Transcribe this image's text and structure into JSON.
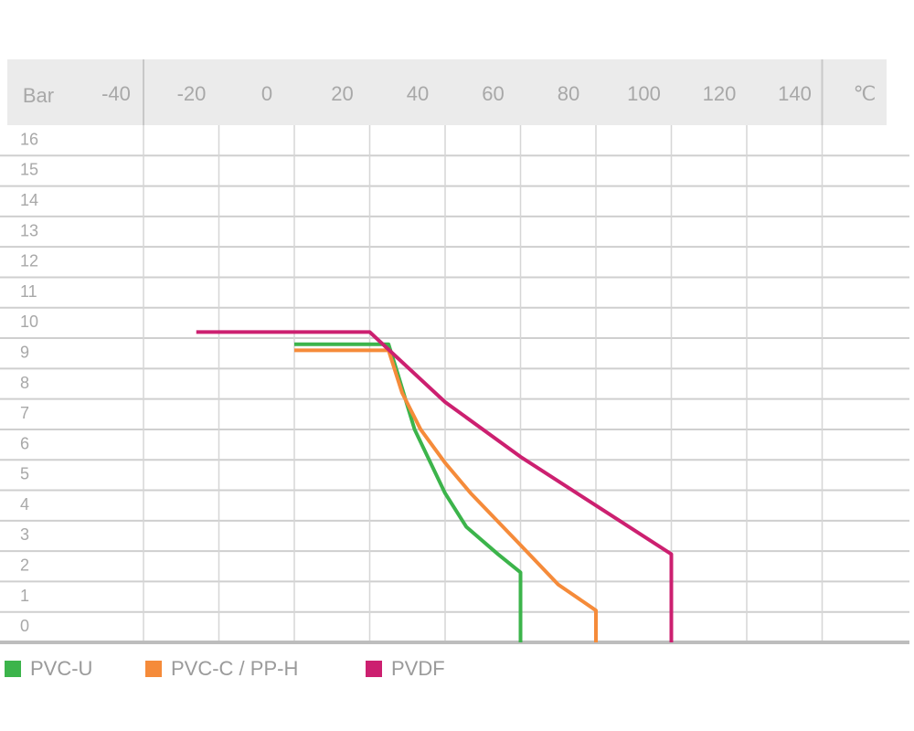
{
  "chart_data": {
    "type": "line",
    "x_label": "℃",
    "y_label": "Bar",
    "xlim": [
      -40,
      140
    ],
    "xticks": [
      -40,
      -20,
      0,
      20,
      40,
      60,
      80,
      100,
      120,
      140
    ],
    "ylim": [
      0,
      17
    ],
    "yticks": [
      0,
      1,
      2,
      3,
      4,
      5,
      6,
      7,
      8,
      9,
      10,
      11,
      12,
      13,
      14,
      15,
      16
    ],
    "grid": true,
    "series": [
      {
        "name": "PVC-U",
        "color": "#3cb44b",
        "x": [
          0,
          25,
          27.5,
          31.9,
          40,
          45.6,
          54,
          60,
          60
        ],
        "values": [
          9.8,
          9.8,
          8.8,
          7.0,
          4.9,
          3.8,
          2.9,
          2.3,
          0
        ]
      },
      {
        "name": "PVC-C / PP-H",
        "color": "#f58b3a",
        "x": [
          0,
          25,
          28.6,
          33.5,
          40,
          46.8,
          60,
          70,
          80,
          80
        ],
        "values": [
          9.6,
          9.6,
          8.2,
          7.0,
          5.9,
          4.9,
          3.2,
          1.9,
          1.05,
          0
        ]
      },
      {
        "name": "PVDF",
        "color": "#cc2070",
        "x": [
          -26,
          20,
          40,
          60,
          80,
          100,
          100
        ],
        "values": [
          10.2,
          10.2,
          7.9,
          6.1,
          4.5,
          2.9,
          0
        ]
      }
    ]
  }
}
